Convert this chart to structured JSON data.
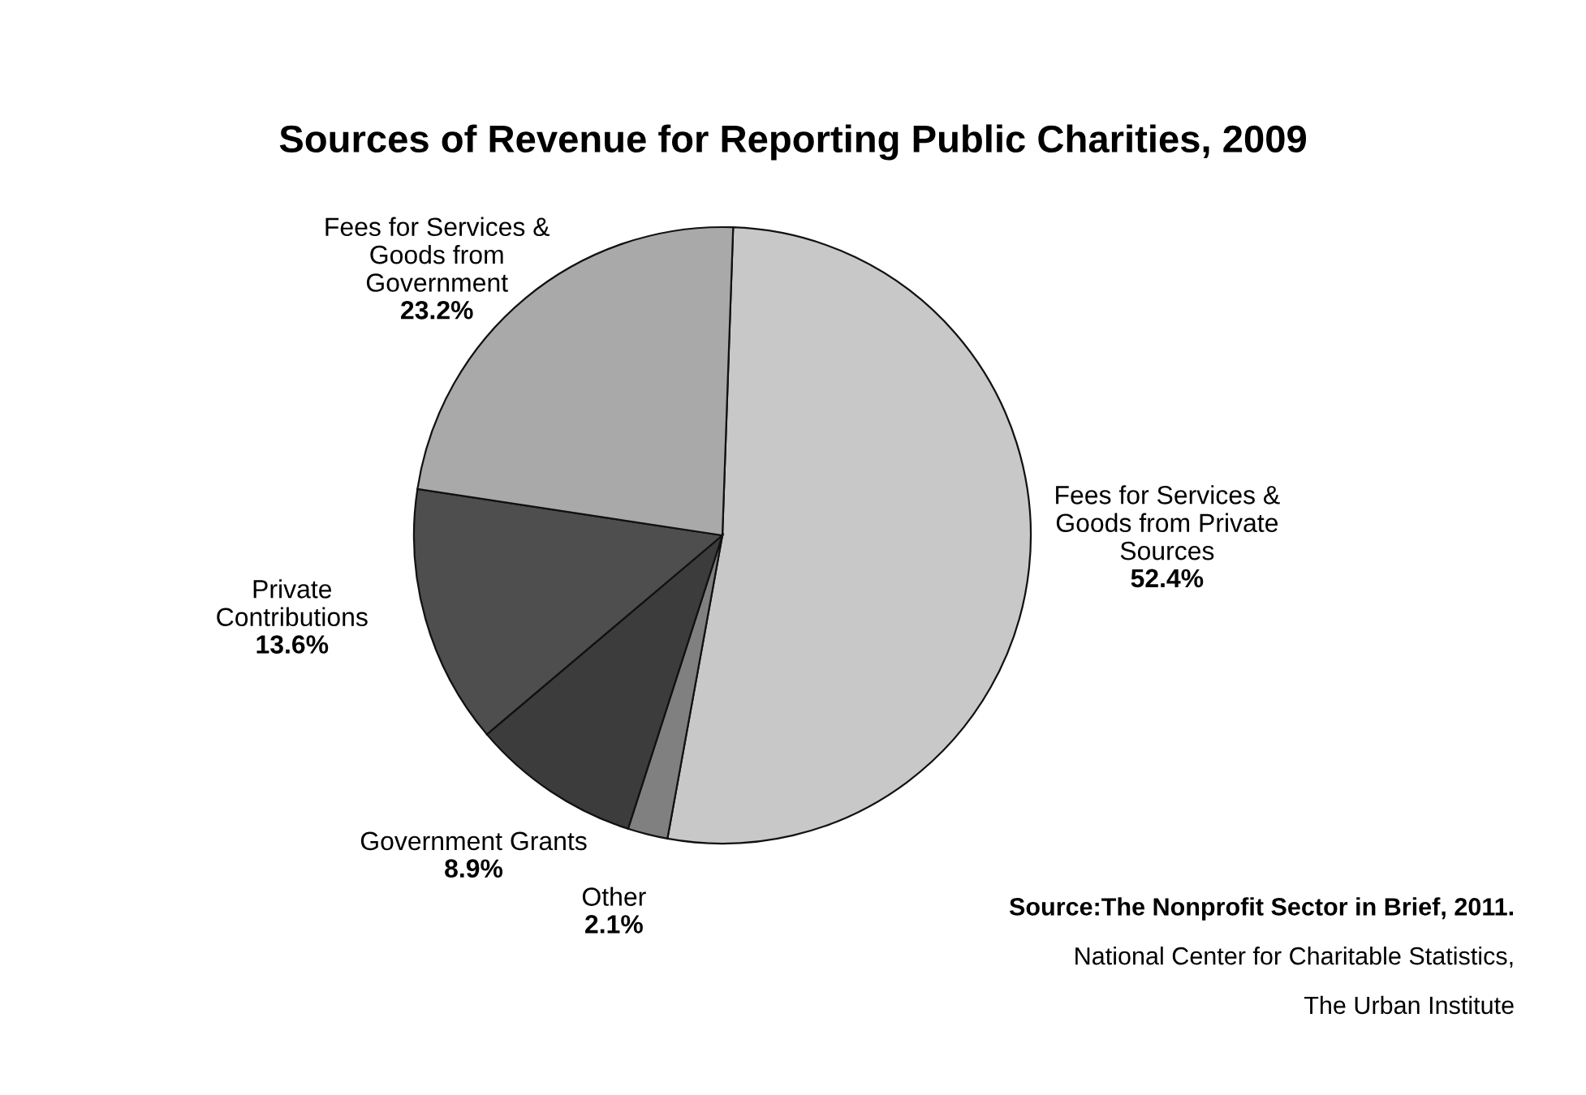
{
  "chart_data": {
    "type": "pie",
    "title": "Sources of Revenue for Reporting Public Charities, 2009",
    "categories": [
      "Fees for Services &\nGoods from Private\nSources",
      "Other",
      "Government Grants",
      "Private\nContributions",
      "Fees for Services &\nGoods from\nGovernment"
    ],
    "values": [
      52.4,
      2.1,
      8.9,
      13.6,
      23.2
    ],
    "value_labels": [
      "52.4%",
      "2.1%",
      "8.9%",
      "13.6%",
      "23.2%"
    ],
    "colors": [
      "#c8c8c8",
      "#808080",
      "#3c3c3c",
      "#4e4e4e",
      "#a9a9a9"
    ],
    "legend": false,
    "annotations": [
      "Source:The Nonprofit Sector in Brief, 2011.",
      "National Center for Charitable Statistics,",
      "The Urban Institute"
    ]
  }
}
